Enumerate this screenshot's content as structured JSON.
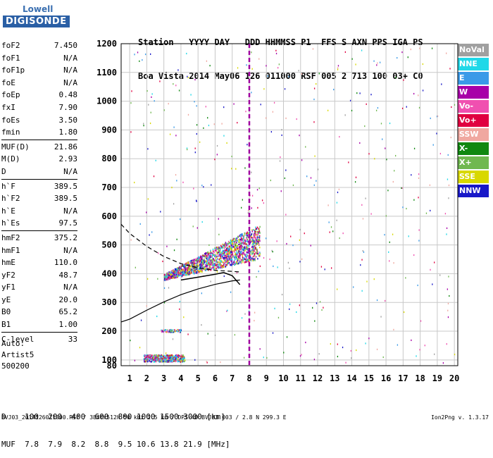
{
  "logo": {
    "line1": "Lowell",
    "line2": "DIGISONDE"
  },
  "header": {
    "line1": "Station   YYYY DAY   DDD HHMMSS P1  FFS S AXN PPS IGA PS",
    "line2": "Boa Vista 2014 May06 126 011000 RSF 005 2 713 100 03+ C0"
  },
  "params": [
    [
      {
        "name": "foF2",
        "value": "7.450"
      },
      {
        "name": "foF1",
        "value": "N/A"
      },
      {
        "name": "foF1p",
        "value": "N/A"
      },
      {
        "name": "foE",
        "value": "N/A"
      },
      {
        "name": "foEp",
        "value": "0.48"
      },
      {
        "name": "fxI",
        "value": "7.90"
      },
      {
        "name": "foEs",
        "value": "3.50"
      },
      {
        "name": "fmin",
        "value": "1.80"
      }
    ],
    [
      {
        "name": "MUF(D)",
        "value": "21.86"
      },
      {
        "name": "M(D)",
        "value": "2.93"
      },
      {
        "name": "D",
        "value": "N/A"
      }
    ],
    [
      {
        "name": "h`F",
        "value": "389.5"
      },
      {
        "name": "h`F2",
        "value": "389.5"
      },
      {
        "name": "h`E",
        "value": "N/A"
      },
      {
        "name": "h`Es",
        "value": "97.5"
      }
    ],
    [
      {
        "name": "hmF2",
        "value": "375.2"
      },
      {
        "name": "hmF1",
        "value": "N/A"
      },
      {
        "name": "hmE",
        "value": "110.0"
      },
      {
        "name": "yF2",
        "value": "48.7"
      },
      {
        "name": "yF1",
        "value": "N/A"
      },
      {
        "name": "yE",
        "value": "20.0"
      },
      {
        "name": "B0",
        "value": "65.2"
      },
      {
        "name": "B1",
        "value": "1.00"
      }
    ],
    [
      {
        "name": "C-level",
        "value": "33"
      }
    ]
  ],
  "auto": {
    "line1": "Auto:",
    "line2": "Artist5",
    "line3": "500200"
  },
  "mufd_table": {
    "line1": "D    100  200  400  600  800 1000 1500 3000 [km]",
    "line2": "MUF  7.8  7.9  8.2  8.8  9.5 10.6 13.8 21.9 [MHz]"
  },
  "footer": {
    "left": "BVJ03_2014126011000.RSF / 384fx512h 50 kHz 2.5 km / DPS-4D BVJ03 003 / 2.8 N 299.3 E",
    "right": "Ion2Png v. 1.3.17"
  },
  "legend": [
    {
      "label": "NoVal",
      "color": "#a0a0a0"
    },
    {
      "label": "NNE",
      "color": "#20d8e8"
    },
    {
      "label": "E",
      "color": "#3a9ae8"
    },
    {
      "label": "W",
      "color": "#a800a8"
    },
    {
      "label": "Vo-",
      "color": "#f050b0"
    },
    {
      "label": "Vo+",
      "color": "#e00040"
    },
    {
      "label": "SSW",
      "color": "#f0a8a0"
    },
    {
      "label": "X-",
      "color": "#108810"
    },
    {
      "label": "X+",
      "color": "#70b850"
    },
    {
      "label": "SSE",
      "color": "#d8d800"
    },
    {
      "label": "NNW",
      "color": "#1818c8"
    }
  ],
  "chart_data": {
    "type": "scatter",
    "xlim": [
      0.5,
      20.2
    ],
    "ylim": [
      80,
      1200
    ],
    "x_ticks": [
      1,
      2,
      3,
      4,
      5,
      6,
      7,
      8,
      9,
      10,
      11,
      12,
      13,
      14,
      15,
      16,
      17,
      18,
      19,
      20
    ],
    "y_ticks": [
      80,
      100,
      200,
      300,
      400,
      500,
      600,
      700,
      800,
      900,
      1000,
      1100,
      1200
    ],
    "grid": true,
    "frequency_marker": {
      "x": 8.0,
      "color": "#a000a0"
    },
    "profile_curve": {
      "x": [
        0.5,
        1.0,
        2.0,
        3.0,
        4.0,
        5.0,
        6.0,
        7.0,
        7.45
      ],
      "y": [
        232,
        242,
        273,
        302,
        327,
        347,
        363,
        375,
        378
      ]
    },
    "virtual_height_curve": {
      "x": [
        4.0,
        5.0,
        6.0,
        6.5,
        7.0,
        7.45
      ],
      "y": [
        378,
        388,
        398,
        404,
        393,
        362
      ]
    },
    "dashed_curve": {
      "x": [
        0.5,
        1.0,
        2.0,
        3.0,
        4.0,
        5.0,
        6.0,
        7.0,
        7.45
      ],
      "y": [
        572,
        540,
        495,
        460,
        435,
        420,
        412,
        408,
        406
      ]
    },
    "clusters": [
      {
        "name": "F-trace",
        "x": [
          3.0,
          8.6
        ],
        "y": [
          380,
          600
        ],
        "count": 1800
      },
      {
        "name": "Es-low",
        "x": [
          1.8,
          4.2
        ],
        "y": [
          95,
          120
        ],
        "count": 500
      },
      {
        "name": "Es-2",
        "x": [
          2.8,
          4.0
        ],
        "y": [
          198,
          208
        ],
        "count": 80
      }
    ]
  }
}
